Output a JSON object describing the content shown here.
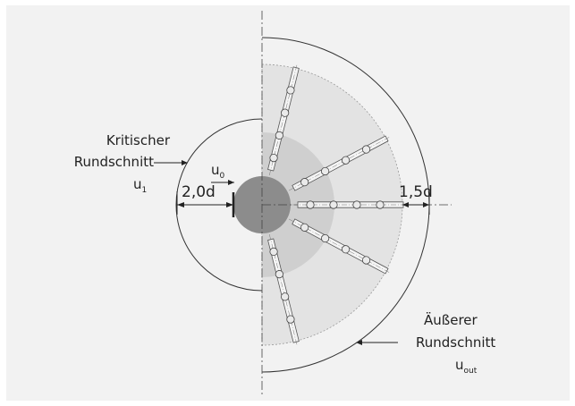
{
  "labels": {
    "critical_line1": "Kritischer",
    "critical_line2": "Rundschnitt",
    "critical_symbol": "u",
    "critical_sub": "1",
    "u0_symbol": "u",
    "u0_sub": "0",
    "dim_left": "2,0d",
    "dim_right": "1,5d",
    "outer_line1": "Äußerer",
    "outer_line2": "Rundschnitt",
    "outer_symbol": "u",
    "outer_sub": "out"
  },
  "colors": {
    "frame_bg": "#f2f2f2",
    "outer_zone": "#e3e3e3",
    "inner_zone": "#cfcfcf",
    "column": "#8c8c8c",
    "line": "#333333"
  },
  "reinforcement": {
    "rail_count": 5,
    "studs_per_rail": 4
  }
}
